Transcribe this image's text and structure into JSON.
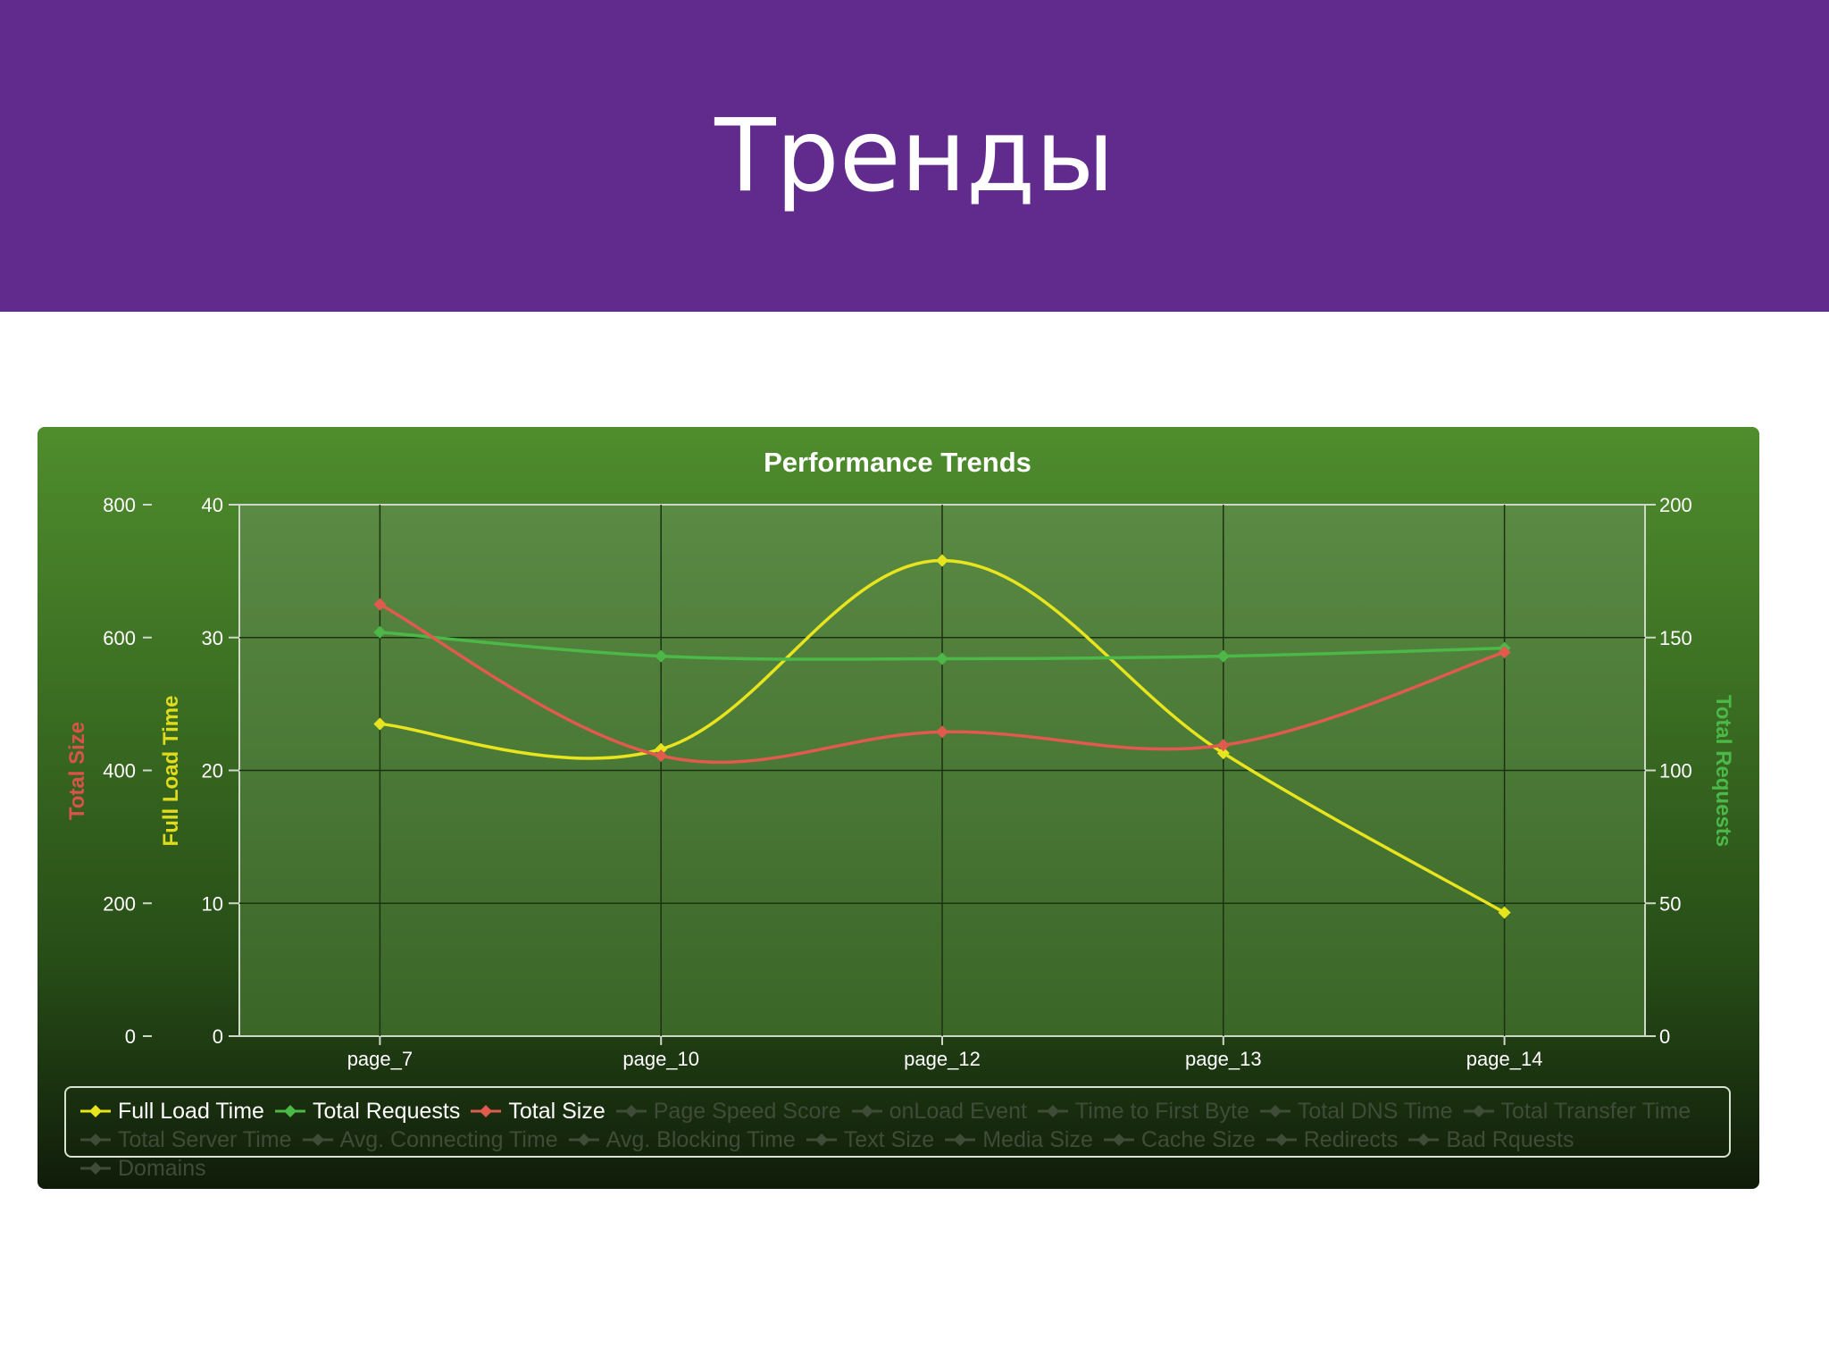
{
  "slide": {
    "title": "Тренды"
  },
  "colors": {
    "header": "#612b8e",
    "full_load_time": "#e8e51e",
    "total_requests": "#4cb848",
    "total_size": "#e05a4e",
    "inactive_legend": "#3f4c38"
  },
  "chart_data": {
    "type": "line",
    "title": "Performance Trends",
    "categories": [
      "page_7",
      "page_10",
      "page_12",
      "page_13",
      "page_14"
    ],
    "axes": {
      "left_outer": {
        "label": "Total Size",
        "ticks": [
          "0",
          "200",
          "400",
          "600",
          "800"
        ],
        "range": [
          0,
          800
        ]
      },
      "left_inner": {
        "label": "Full Load Time",
        "ticks": [
          "0",
          "10",
          "20",
          "30",
          "40"
        ],
        "range": [
          0,
          40
        ]
      },
      "right": {
        "label": "Total Requests",
        "ticks": [
          "0",
          "50",
          "100",
          "150",
          "200"
        ],
        "range": [
          0,
          200
        ]
      }
    },
    "grid": true,
    "legend_position": "bottom",
    "series": [
      {
        "name": "Full Load Time",
        "axis": "left_inner",
        "values": [
          23.5,
          21.6,
          35.8,
          21.3,
          9.3
        ]
      },
      {
        "name": "Total Requests",
        "axis": "right",
        "values": [
          152,
          143,
          142,
          143,
          146
        ]
      },
      {
        "name": "Total Size",
        "axis": "left_outer",
        "values": [
          650,
          422,
          458,
          438,
          578
        ]
      }
    ],
    "legend": {
      "active": [
        "Full Load Time",
        "Total Requests",
        "Total Size"
      ],
      "inactive": [
        "Page Speed Score",
        "onLoad Event",
        "Time to First Byte",
        "Total DNS Time",
        "Total Transfer Time",
        "Total Server Time",
        "Avg. Connecting Time",
        "Avg. Blocking Time",
        "Text Size",
        "Media Size",
        "Cache Size",
        "Redirects",
        "Bad Rquests",
        "Domains"
      ]
    }
  }
}
